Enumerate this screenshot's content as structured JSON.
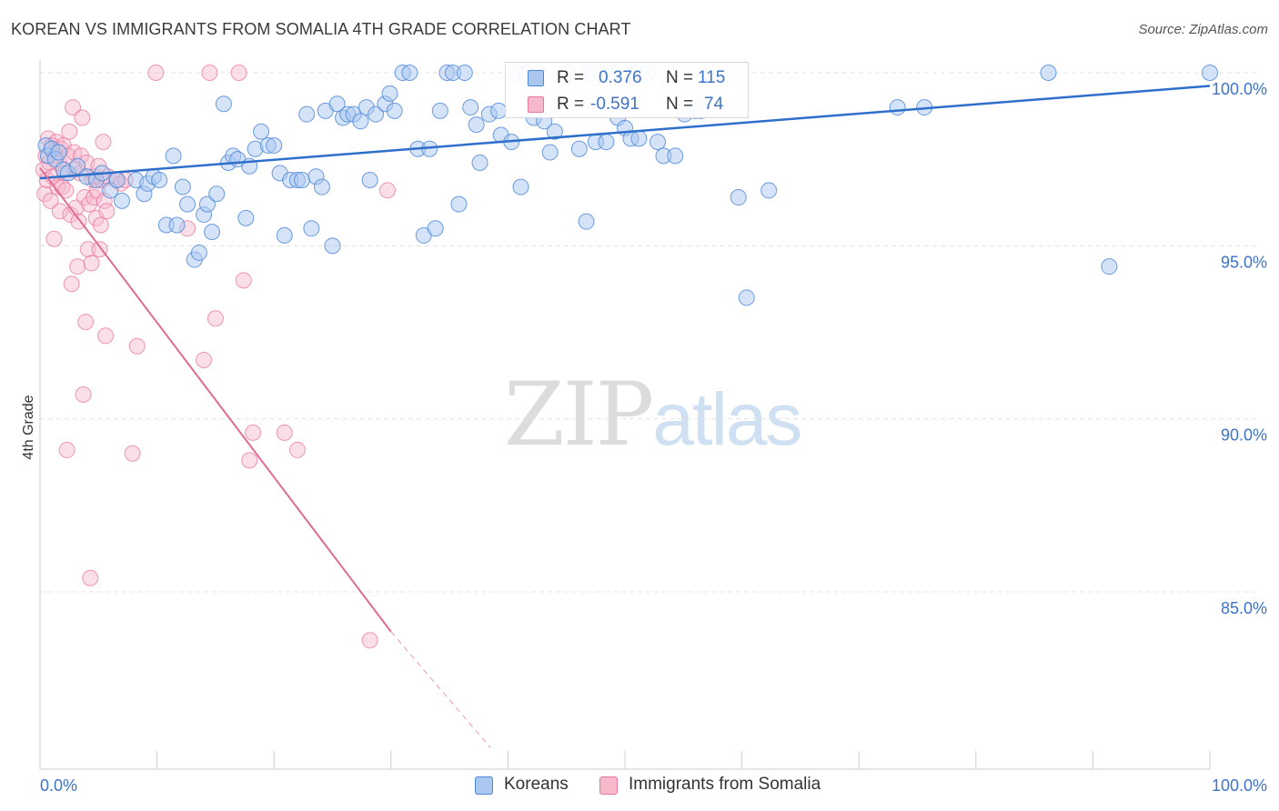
{
  "title": "KOREAN VS IMMIGRANTS FROM SOMALIA 4TH GRADE CORRELATION CHART",
  "source": "Source: ZipAtlas.com",
  "watermark": {
    "zip": "ZIP",
    "atlas": "atlas"
  },
  "legend": {
    "korean": {
      "r_label": "R =",
      "r_value": "0.376",
      "n_label": "N =",
      "n_value": "115"
    },
    "somalia": {
      "r_label": "R =",
      "r_value": "-0.591",
      "n_label": "N =",
      "n_value": "74"
    }
  },
  "bottom_legend": {
    "korean": "Koreans",
    "somalia": "Immigrants from Somalia"
  },
  "colors": {
    "korean_fill": "#aac8ef",
    "korean_stroke": "#4b86d6",
    "korean_line": "#2f6fcc",
    "somalia_fill": "#f6b9cc",
    "somalia_stroke": "#e7779c",
    "somalia_line": "#e06c96",
    "tick_label": "#3d73c8",
    "grid": "#e3e3e3"
  },
  "chart_data": {
    "type": "scatter",
    "title": "KOREAN VS IMMIGRANTS FROM SOMALIA 4TH GRADE CORRELATION CHART",
    "ylabel": "4th Grade",
    "xlabel": "",
    "xlim": [
      0,
      100
    ],
    "ylim": [
      80.5,
      100.35
    ],
    "x_tick_labels": [
      {
        "value": 0,
        "label": "0.0%"
      },
      {
        "value": 100,
        "label": "100.0%"
      }
    ],
    "y_ticks": [
      {
        "value": 100,
        "label": "100.0%"
      },
      {
        "value": 95,
        "label": "95.0%"
      },
      {
        "value": 90,
        "label": "90.0%"
      },
      {
        "value": 85,
        "label": "85.0%"
      }
    ],
    "grid": "horizontal dashed",
    "series": [
      {
        "name": "Koreans",
        "r": 0.376,
        "n": 115,
        "trend": {
          "x0": 0,
          "y0": 96.95,
          "x1": 100,
          "y1": 99.62
        },
        "points": [
          [
            0.5,
            97.9
          ],
          [
            0.7,
            97.6
          ],
          [
            1.0,
            97.8
          ],
          [
            1.3,
            97.5
          ],
          [
            1.6,
            97.7
          ],
          [
            2.0,
            97.2
          ],
          [
            2.4,
            97.1
          ],
          [
            3.2,
            97.3
          ],
          [
            4.0,
            97.0
          ],
          [
            4.8,
            96.9
          ],
          [
            5.3,
            97.1
          ],
          [
            6.0,
            96.6
          ],
          [
            6.6,
            96.9
          ],
          [
            7.0,
            96.3
          ],
          [
            8.2,
            96.9
          ],
          [
            8.9,
            96.5
          ],
          [
            9.2,
            96.8
          ],
          [
            9.7,
            97.0
          ],
          [
            10.2,
            96.9
          ],
          [
            10.8,
            95.6
          ],
          [
            11.4,
            97.6
          ],
          [
            11.7,
            95.6
          ],
          [
            12.2,
            96.7
          ],
          [
            12.6,
            96.2
          ],
          [
            13.2,
            94.6
          ],
          [
            13.6,
            94.8
          ],
          [
            14.0,
            95.9
          ],
          [
            14.3,
            96.2
          ],
          [
            14.7,
            95.4
          ],
          [
            15.1,
            96.5
          ],
          [
            15.7,
            99.1
          ],
          [
            16.1,
            97.4
          ],
          [
            16.5,
            97.6
          ],
          [
            16.9,
            97.5
          ],
          [
            17.6,
            95.8
          ],
          [
            17.9,
            97.3
          ],
          [
            18.4,
            97.8
          ],
          [
            18.9,
            98.3
          ],
          [
            19.5,
            97.9
          ],
          [
            20.0,
            97.9
          ],
          [
            20.5,
            97.1
          ],
          [
            20.9,
            95.3
          ],
          [
            21.4,
            96.9
          ],
          [
            22.0,
            96.9
          ],
          [
            22.4,
            96.9
          ],
          [
            22.8,
            98.8
          ],
          [
            23.2,
            95.5
          ],
          [
            23.6,
            97.0
          ],
          [
            24.1,
            96.7
          ],
          [
            24.4,
            98.9
          ],
          [
            25.0,
            95.0
          ],
          [
            25.4,
            99.1
          ],
          [
            25.9,
            98.7
          ],
          [
            26.3,
            98.8
          ],
          [
            26.8,
            98.8
          ],
          [
            27.4,
            98.6
          ],
          [
            27.9,
            99.0
          ],
          [
            28.2,
            96.9
          ],
          [
            28.7,
            98.8
          ],
          [
            29.5,
            99.1
          ],
          [
            29.9,
            99.4
          ],
          [
            30.3,
            98.9
          ],
          [
            31.0,
            100.0
          ],
          [
            31.6,
            100.0
          ],
          [
            32.3,
            97.8
          ],
          [
            32.8,
            95.3
          ],
          [
            33.3,
            97.8
          ],
          [
            33.8,
            95.5
          ],
          [
            34.2,
            98.9
          ],
          [
            34.8,
            100.0
          ],
          [
            35.3,
            100.0
          ],
          [
            35.8,
            96.2
          ],
          [
            36.3,
            100.0
          ],
          [
            36.8,
            99.0
          ],
          [
            37.3,
            98.5
          ],
          [
            37.6,
            97.4
          ],
          [
            38.4,
            98.8
          ],
          [
            39.2,
            98.9
          ],
          [
            39.4,
            98.2
          ],
          [
            40.3,
            98.0
          ],
          [
            40.7,
            100.0
          ],
          [
            41.1,
            96.7
          ],
          [
            41.6,
            100.0
          ],
          [
            42.2,
            98.7
          ],
          [
            43.1,
            98.6
          ],
          [
            43.6,
            97.7
          ],
          [
            44.0,
            98.3
          ],
          [
            45.1,
            100.0
          ],
          [
            46.1,
            97.8
          ],
          [
            46.7,
            95.7
          ],
          [
            47.0,
            100.0
          ],
          [
            47.5,
            98.0
          ],
          [
            47.9,
            100.0
          ],
          [
            48.4,
            98.0
          ],
          [
            49.0,
            100.0
          ],
          [
            49.4,
            98.7
          ],
          [
            50.0,
            98.4
          ],
          [
            50.5,
            98.1
          ],
          [
            50.9,
            100.0
          ],
          [
            51.2,
            98.1
          ],
          [
            52.0,
            100.0
          ],
          [
            52.8,
            98.0
          ],
          [
            53.3,
            97.6
          ],
          [
            54.3,
            97.6
          ],
          [
            55.1,
            98.8
          ],
          [
            56.0,
            98.9
          ],
          [
            56.5,
            98.9
          ],
          [
            59.7,
            96.4
          ],
          [
            60.4,
            93.5
          ],
          [
            62.3,
            96.6
          ],
          [
            73.3,
            99.0
          ],
          [
            75.6,
            99.0
          ],
          [
            86.2,
            100.0
          ],
          [
            91.4,
            94.4
          ],
          [
            100.0,
            100.0
          ]
        ]
      },
      {
        "name": "Immigrants from Somalia",
        "r": -0.591,
        "n": 74,
        "trend": {
          "x0": 0,
          "y0": 97.25,
          "x1": 30,
          "y1": 83.85,
          "dashed_to": {
            "x": 38.5,
            "y": 80.5
          }
        },
        "points": [
          [
            0.3,
            97.2
          ],
          [
            0.4,
            96.5
          ],
          [
            0.5,
            97.6
          ],
          [
            0.6,
            96.9
          ],
          [
            0.7,
            98.1
          ],
          [
            0.8,
            97.4
          ],
          [
            0.9,
            96.3
          ],
          [
            1.0,
            97.9
          ],
          [
            1.1,
            97.0
          ],
          [
            1.2,
            95.2
          ],
          [
            1.3,
            97.6
          ],
          [
            1.4,
            98.0
          ],
          [
            1.5,
            96.7
          ],
          [
            1.6,
            97.4
          ],
          [
            1.7,
            96.0
          ],
          [
            1.8,
            97.8
          ],
          [
            1.9,
            96.7
          ],
          [
            2.0,
            97.9
          ],
          [
            2.1,
            97.1
          ],
          [
            2.2,
            96.6
          ],
          [
            2.3,
            89.1
          ],
          [
            2.4,
            97.6
          ],
          [
            2.5,
            98.3
          ],
          [
            2.6,
            95.9
          ],
          [
            2.7,
            93.9
          ],
          [
            2.8,
            99.0
          ],
          [
            2.9,
            97.7
          ],
          [
            3.0,
            97.2
          ],
          [
            3.1,
            96.1
          ],
          [
            3.2,
            94.4
          ],
          [
            3.3,
            95.7
          ],
          [
            3.4,
            97.1
          ],
          [
            3.5,
            97.6
          ],
          [
            3.6,
            98.7
          ],
          [
            3.7,
            90.7
          ],
          [
            3.8,
            96.4
          ],
          [
            3.9,
            92.8
          ],
          [
            4.0,
            97.4
          ],
          [
            4.1,
            94.9
          ],
          [
            4.2,
            96.2
          ],
          [
            4.3,
            85.4
          ],
          [
            4.4,
            94.5
          ],
          [
            4.5,
            96.9
          ],
          [
            4.6,
            96.4
          ],
          [
            4.7,
            97.0
          ],
          [
            4.8,
            95.8
          ],
          [
            4.9,
            96.6
          ],
          [
            5.0,
            97.3
          ],
          [
            5.1,
            94.9
          ],
          [
            5.2,
            95.6
          ],
          [
            5.3,
            96.9
          ],
          [
            5.4,
            98.0
          ],
          [
            5.5,
            96.3
          ],
          [
            5.6,
            92.4
          ],
          [
            5.7,
            96.0
          ],
          [
            5.8,
            97.0
          ],
          [
            6.5,
            96.9
          ],
          [
            6.9,
            96.8
          ],
          [
            7.3,
            96.9
          ],
          [
            7.9,
            89.0
          ],
          [
            8.3,
            92.1
          ],
          [
            9.9,
            100.0
          ],
          [
            12.6,
            95.5
          ],
          [
            14.0,
            91.7
          ],
          [
            14.5,
            100.0
          ],
          [
            15.0,
            92.9
          ],
          [
            17.0,
            100.0
          ],
          [
            17.4,
            94.0
          ],
          [
            17.9,
            88.8
          ],
          [
            18.2,
            89.6
          ],
          [
            20.9,
            89.6
          ],
          [
            22.0,
            89.1
          ],
          [
            28.2,
            83.6
          ],
          [
            29.7,
            96.6
          ]
        ]
      }
    ]
  }
}
